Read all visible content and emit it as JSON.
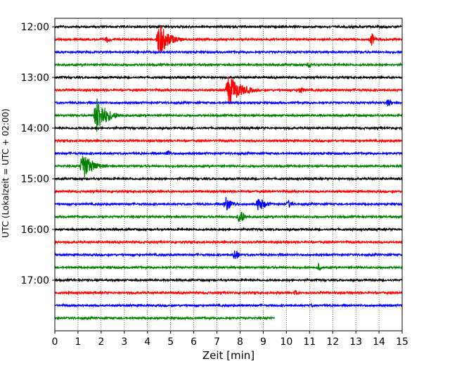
{
  "chart_data": {
    "type": "line",
    "title": "",
    "xlabel": "Zeit  [min]",
    "ylabel": "UTC (Lokalzeit = UTC + 02:00)",
    "xlim": [
      0,
      15
    ],
    "ylim": [
      "11:50",
      "18:00"
    ],
    "x_ticks": [
      "0",
      "1",
      "2",
      "3",
      "4",
      "5",
      "6",
      "7",
      "8",
      "9",
      "10",
      "11",
      "12",
      "13",
      "14",
      "15"
    ],
    "y_ticks": [
      "12:00",
      "13:00",
      "14:00",
      "15:00",
      "16:00",
      "17:00"
    ],
    "grid": "vertical dotted at each minute",
    "line_minutes": 15,
    "colors": [
      "#000000",
      "#ff0000",
      "#0000ff",
      "#008000"
    ],
    "traces": [
      {
        "start": "12:00",
        "end_min": 15,
        "color": "#000000",
        "events": []
      },
      {
        "start": "12:15",
        "end_min": 15,
        "color": "#ff0000",
        "events": [
          {
            "t": 4.5,
            "amp": 1.45,
            "dur": 1.2
          },
          {
            "t": 2.25,
            "amp": 0.3,
            "dur": 0.5
          },
          {
            "t": 13.7,
            "amp": 0.6,
            "dur": 0.3
          }
        ]
      },
      {
        "start": "12:30",
        "end_min": 15,
        "color": "#0000ff",
        "events": []
      },
      {
        "start": "12:45",
        "end_min": 15,
        "color": "#008000",
        "events": [
          {
            "t": 11.0,
            "amp": 0.35,
            "dur": 0.3
          }
        ]
      },
      {
        "start": "13:00",
        "end_min": 15,
        "color": "#000000",
        "events": []
      },
      {
        "start": "13:15",
        "end_min": 15,
        "color": "#ff0000",
        "events": [
          {
            "t": 7.5,
            "amp": 1.35,
            "dur": 1.5
          },
          {
            "t": 10.6,
            "amp": 0.3,
            "dur": 0.6
          }
        ]
      },
      {
        "start": "13:30",
        "end_min": 15,
        "color": "#0000ff",
        "events": [
          {
            "t": 14.4,
            "amp": 0.35,
            "dur": 0.5
          }
        ]
      },
      {
        "start": "13:45",
        "end_min": 15,
        "color": "#008000",
        "events": [
          {
            "t": 1.8,
            "amp": 1.5,
            "dur": 1.3
          }
        ]
      },
      {
        "start": "14:00",
        "end_min": 15,
        "color": "#000000",
        "events": []
      },
      {
        "start": "14:15",
        "end_min": 15,
        "color": "#ff0000",
        "events": []
      },
      {
        "start": "14:30",
        "end_min": 15,
        "color": "#0000ff",
        "events": [
          {
            "t": 4.9,
            "amp": 0.35,
            "dur": 0.4
          }
        ]
      },
      {
        "start": "14:45",
        "end_min": 15,
        "color": "#008000",
        "events": [
          {
            "t": 1.2,
            "amp": 1.15,
            "dur": 1.3
          }
        ]
      },
      {
        "start": "15:00",
        "end_min": 15,
        "color": "#000000",
        "events": []
      },
      {
        "start": "15:15",
        "end_min": 15,
        "color": "#ff0000",
        "events": []
      },
      {
        "start": "15:30",
        "end_min": 15,
        "color": "#0000ff",
        "events": [
          {
            "t": 7.4,
            "amp": 0.65,
            "dur": 0.8
          },
          {
            "t": 8.8,
            "amp": 0.65,
            "dur": 0.9
          },
          {
            "t": 10.1,
            "amp": 0.35,
            "dur": 0.6
          }
        ]
      },
      {
        "start": "15:45",
        "end_min": 15,
        "color": "#008000",
        "events": [
          {
            "t": 8.0,
            "amp": 0.75,
            "dur": 0.5
          }
        ]
      },
      {
        "start": "16:00",
        "end_min": 15,
        "color": "#000000",
        "events": []
      },
      {
        "start": "16:15",
        "end_min": 15,
        "color": "#ff0000",
        "events": []
      },
      {
        "start": "16:30",
        "end_min": 15,
        "color": "#0000ff",
        "events": [
          {
            "t": 7.8,
            "amp": 0.6,
            "dur": 0.4
          }
        ]
      },
      {
        "start": "16:45",
        "end_min": 15,
        "color": "#008000",
        "events": [
          {
            "t": 11.4,
            "amp": 0.35,
            "dur": 0.3
          }
        ]
      },
      {
        "start": "17:00",
        "end_min": 15,
        "color": "#000000",
        "events": []
      },
      {
        "start": "17:15",
        "end_min": 15,
        "color": "#ff0000",
        "events": [
          {
            "t": 10.4,
            "amp": 0.25,
            "dur": 0.3
          }
        ]
      },
      {
        "start": "17:30",
        "end_min": 15,
        "color": "#0000ff",
        "events": [
          {
            "t": 11.1,
            "amp": 0.2,
            "dur": 0.3
          }
        ]
      },
      {
        "start": "17:45",
        "end_min": 9.5,
        "color": "#008000",
        "events": []
      }
    ]
  }
}
